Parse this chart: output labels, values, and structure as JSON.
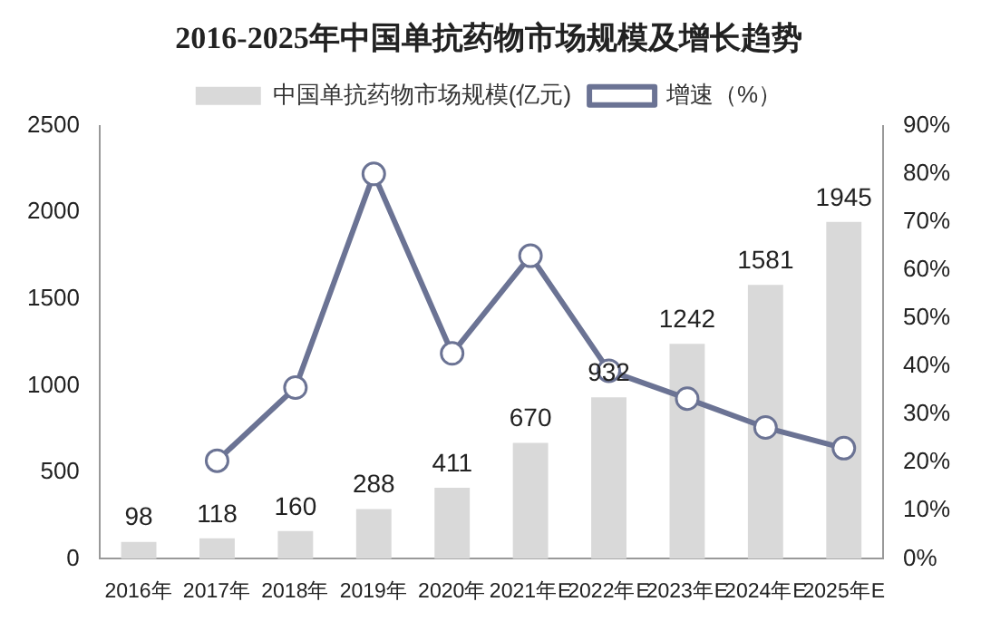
{
  "chart_data": {
    "type": "bar",
    "title": "2016-2025年中国单抗药物市场规模及增长趋势",
    "categories": [
      "2016年",
      "2017年",
      "2018年",
      "2019年",
      "2020年",
      "2021年E",
      "2022年E",
      "2023年E",
      "2024年E",
      "2025年E"
    ],
    "series": [
      {
        "name": "中国单抗药物市场规模(亿元)",
        "color": "#d9d9d9",
        "values": [
          98,
          118,
          160,
          288,
          411,
          670,
          932,
          1242,
          1581,
          1945
        ],
        "value_labels": [
          "98",
          "118",
          "160",
          "288",
          "411",
          "670",
          "932",
          "1242",
          "1581",
          "1945"
        ]
      },
      {
        "name": "增速（%）",
        "type": "line",
        "axis": "y2",
        "color": "#6b7394",
        "marker": "circle",
        "values": [
          null,
          20.4,
          35.6,
          80.0,
          42.7,
          63.0,
          39.1,
          33.3,
          27.3,
          23.0
        ]
      }
    ],
    "ylim": [
      0,
      2500
    ],
    "yticks": [
      0,
      500,
      1000,
      1500,
      2000,
      2500
    ],
    "y2lim": [
      0,
      90
    ],
    "y2ticks": [
      {
        "value": 0,
        "label": "0%"
      },
      {
        "value": 10,
        "label": "10%"
      },
      {
        "value": 20,
        "label": "20%"
      },
      {
        "value": 30,
        "label": "30%"
      },
      {
        "value": 40,
        "label": "40%"
      },
      {
        "value": 50,
        "label": "50%"
      },
      {
        "value": 60,
        "label": "60%"
      },
      {
        "value": 70,
        "label": "70%"
      },
      {
        "value": 80,
        "label": "80%"
      },
      {
        "value": 90,
        "label": "90%"
      }
    ],
    "grid": false,
    "legend": "top"
  }
}
